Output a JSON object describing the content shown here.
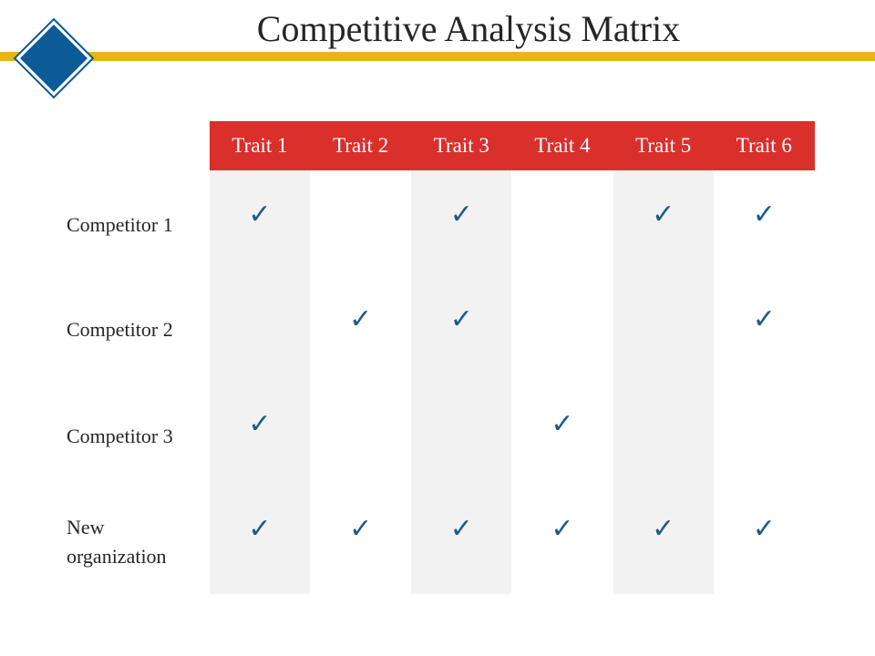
{
  "title": "Competitive Analysis Matrix",
  "colors": {
    "accent_bar": "#e8b614",
    "logo_fill": "#0c5a96",
    "header": "#d9302c",
    "column_shade": "#f2f2f2",
    "check": "#1d5a8a"
  },
  "logo": {
    "icon": "diamond-icon"
  },
  "matrix": {
    "check_glyph": "✓",
    "traits": [
      "Trait 1",
      "Trait 2",
      "Trait 3",
      "Trait 4",
      "Trait 5",
      "Trait 6"
    ],
    "rows": [
      {
        "label": "Competitor 1",
        "checks": [
          true,
          false,
          true,
          false,
          true,
          true
        ]
      },
      {
        "label": "Competitor 2",
        "checks": [
          false,
          true,
          true,
          false,
          false,
          true
        ]
      },
      {
        "label": "Competitor 3",
        "checks": [
          true,
          false,
          false,
          true,
          false,
          false
        ]
      },
      {
        "label": "New organization",
        "checks": [
          true,
          true,
          true,
          true,
          true,
          true
        ]
      }
    ]
  }
}
